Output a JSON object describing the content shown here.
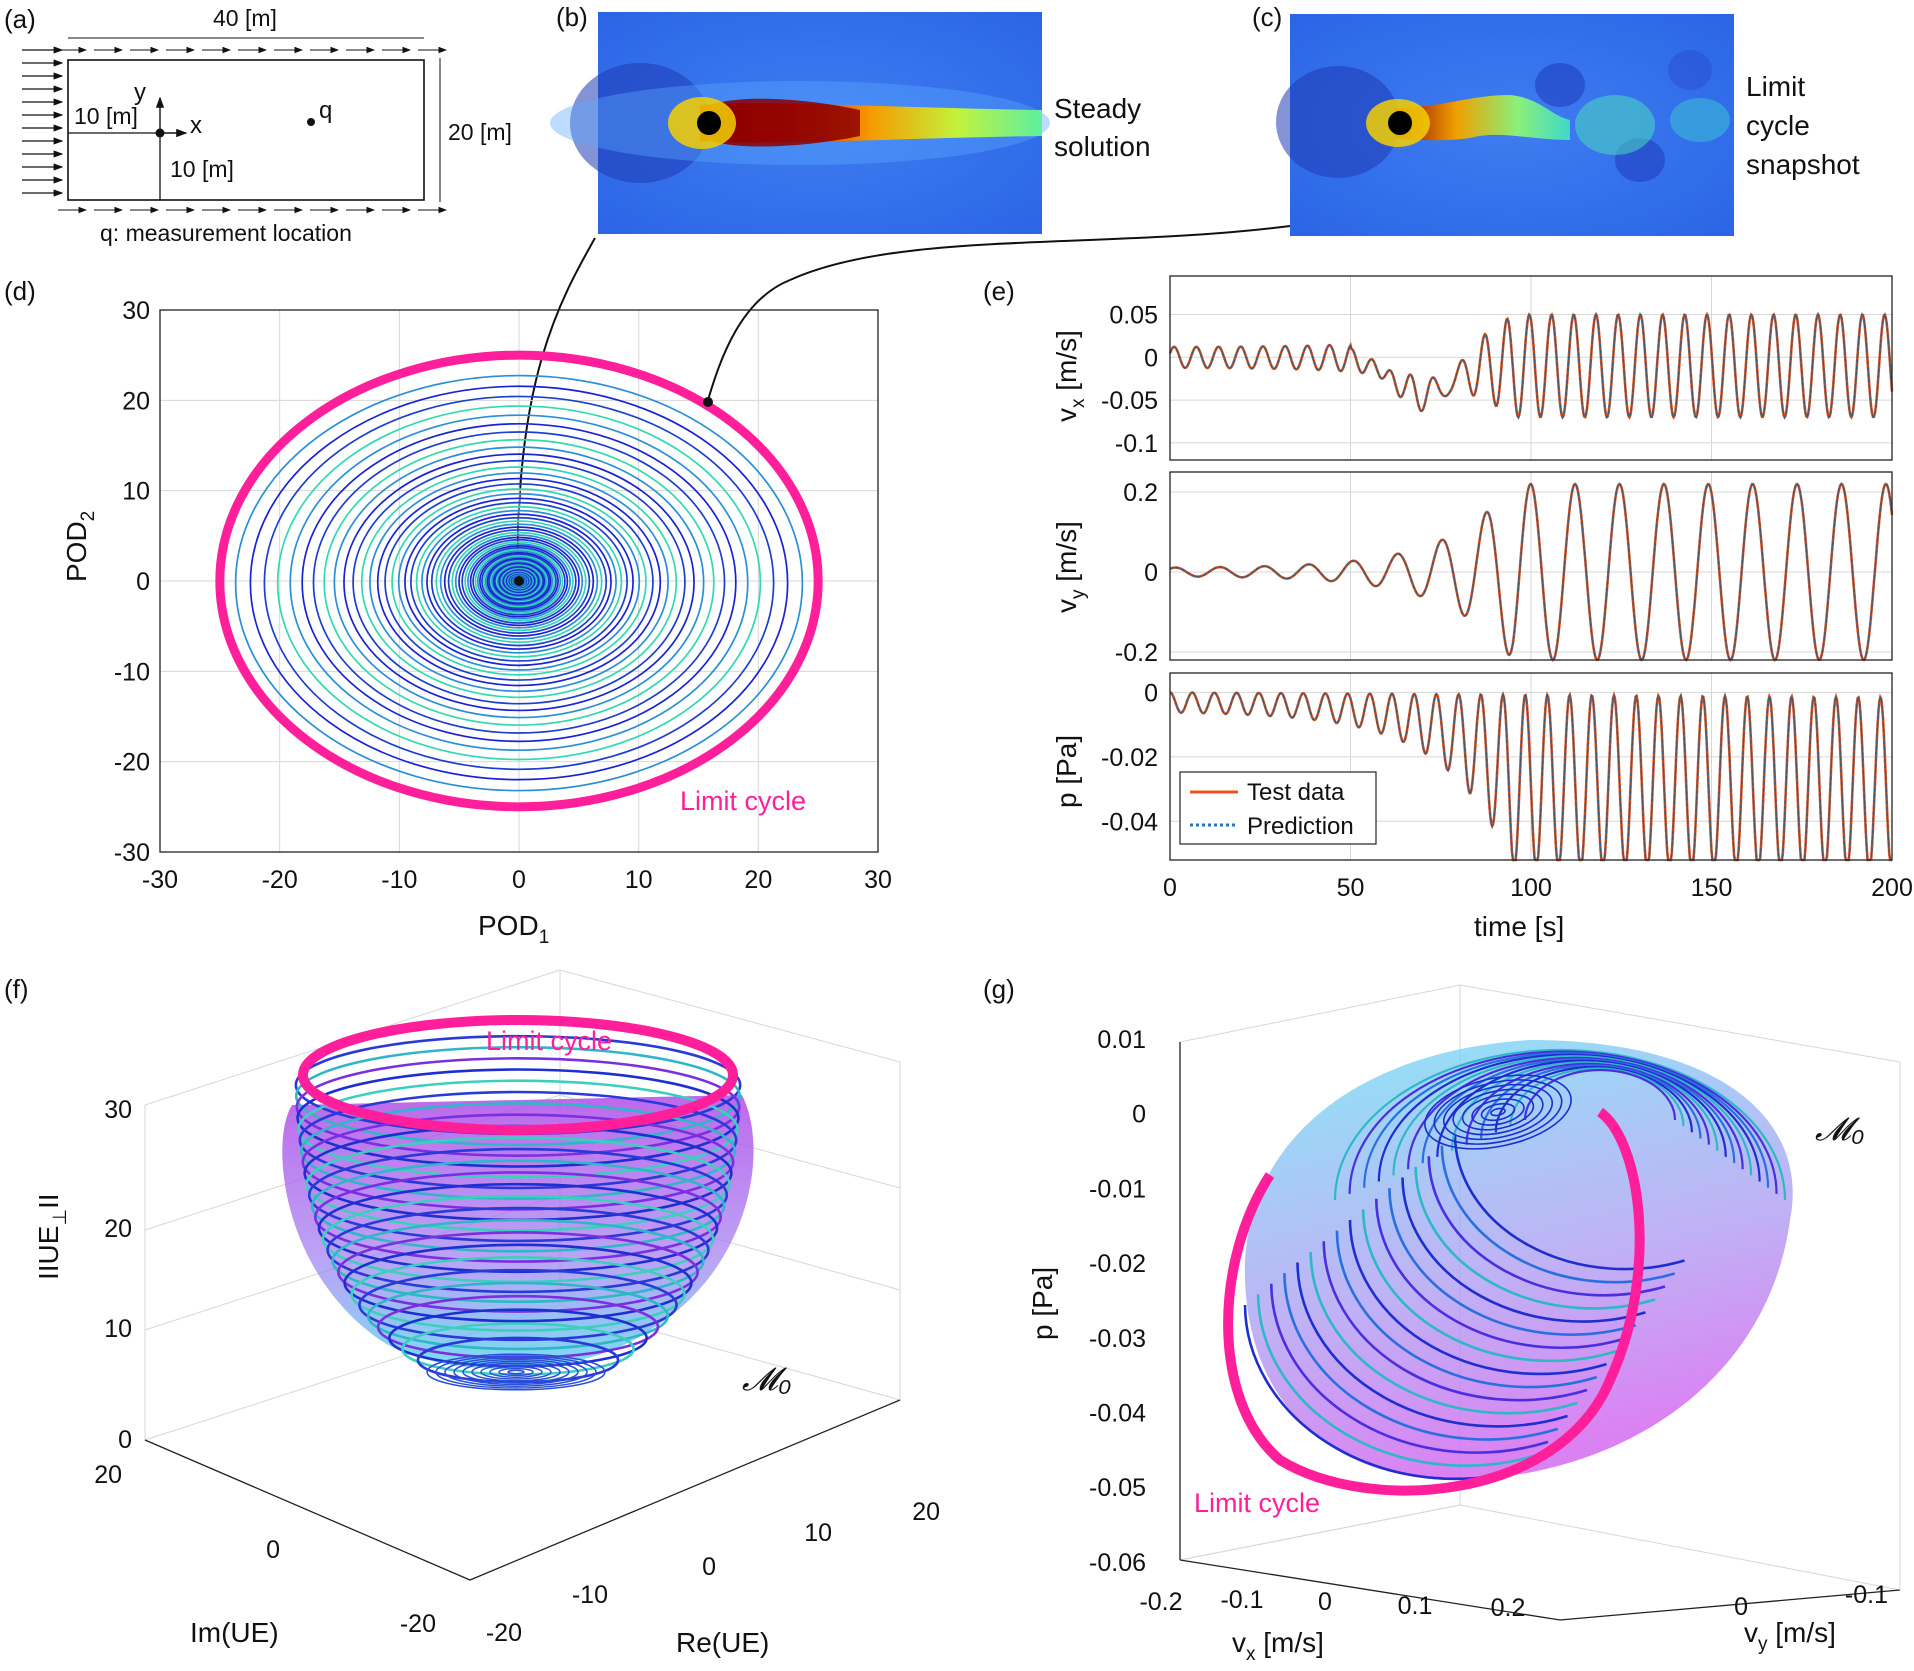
{
  "panels": {
    "a": {
      "label": "(a)",
      "width_label": "40 [m]",
      "height_label": "20 [m]",
      "offset_x_label": "10 [m]",
      "offset_y_label": "10 [m]",
      "axis_x": "x",
      "axis_y": "y",
      "point_label": "q",
      "caption": "q: measurement location"
    },
    "b": {
      "label": "(b)",
      "caption_line1": "Steady",
      "caption_line2": "solution"
    },
    "c": {
      "label": "(c)",
      "caption_line1": "Limit",
      "caption_line2": "cycle",
      "caption_line3": "snapshot"
    },
    "d": {
      "label": "(d)",
      "annotation": "Limit cycle"
    },
    "e": {
      "label": "(e)"
    },
    "f": {
      "label": "(f)",
      "annotation": "Limit cycle",
      "manifold_label": "𝓜₀"
    },
    "g": {
      "label": "(g)",
      "annotation": "Limit cycle",
      "manifold_label": "𝓜₀"
    }
  },
  "chart_data": [
    {
      "panel": "d",
      "type": "line",
      "xlabel": "POD",
      "xlabel_sub": "1",
      "ylabel": "POD",
      "ylabel_sub": "2",
      "xlim": [
        -30,
        30
      ],
      "ylim": [
        -30,
        30
      ],
      "xticks": [
        -30,
        -20,
        -10,
        0,
        10,
        20,
        30
      ],
      "yticks": [
        -30,
        -20,
        -10,
        0,
        10,
        20,
        30
      ],
      "limit_cycle_radius_x": 25,
      "limit_cycle_radius_y": 25,
      "grid": true
    },
    {
      "panel": "e",
      "type": "line",
      "xlabel": "time [s]",
      "xlim": [
        0,
        200
      ],
      "xticks": [
        0,
        50,
        100,
        150,
        200
      ],
      "legend": [
        "Test data",
        "Prediction"
      ],
      "legend_position": "bottom-left",
      "series_colors": {
        "Test data": "#e8541a",
        "Prediction": "#1f77c4"
      },
      "subplots": [
        {
          "ylabel": "v",
          "ylabel_sub": "x",
          "ylabel_unit": " [m/s]",
          "ylim": [
            -0.12,
            0.095
          ],
          "yticks": [
            0.05,
            0,
            -0.05,
            -0.1
          ],
          "ytick_labels": [
            "0.05",
            "0",
            "-0.05",
            "-0.1"
          ]
        },
        {
          "ylabel": "v",
          "ylabel_sub": "y",
          "ylabel_unit": " [m/s]",
          "ylim": [
            -0.22,
            0.25
          ],
          "yticks": [
            0.2,
            0,
            -0.2
          ],
          "ytick_labels": [
            "0.2",
            "0",
            "-0.2"
          ]
        },
        {
          "ylabel": "p [Pa]",
          "ylim": [
            -0.052,
            0.006
          ],
          "yticks": [
            0,
            -0.02,
            -0.04
          ],
          "ytick_labels": [
            "0",
            "-0.02",
            "-0.04"
          ]
        }
      ]
    },
    {
      "panel": "f",
      "type": "surface3d",
      "zlabel": "IIUE",
      "zlabel_sub": "⊥",
      "zlabel_end": "II",
      "xlabel": "Re(UE)",
      "ylabel": "Im(UE)",
      "zticks": [
        0,
        10,
        20,
        30
      ],
      "xticks": [
        -20,
        -10,
        0,
        10,
        20
      ],
      "yticks": [
        20,
        0,
        -20
      ]
    },
    {
      "panel": "g",
      "type": "surface3d",
      "zlabel": "p [Pa]",
      "xlabel": "v",
      "xlabel_sub": "x",
      "xlabel_unit": " [m/s]",
      "ylabel": "v",
      "ylabel_sub": "y",
      "ylabel_unit": " [m/s]",
      "zticks": [
        "0.01",
        "0",
        "-0.01",
        "-0.02",
        "-0.03",
        "-0.04",
        "-0.05",
        "-0.06"
      ],
      "xticks": [
        "-0.2",
        "-0.1",
        "0",
        "0.1",
        "0.2"
      ],
      "yticks": [
        "0",
        "-0.1"
      ]
    }
  ]
}
